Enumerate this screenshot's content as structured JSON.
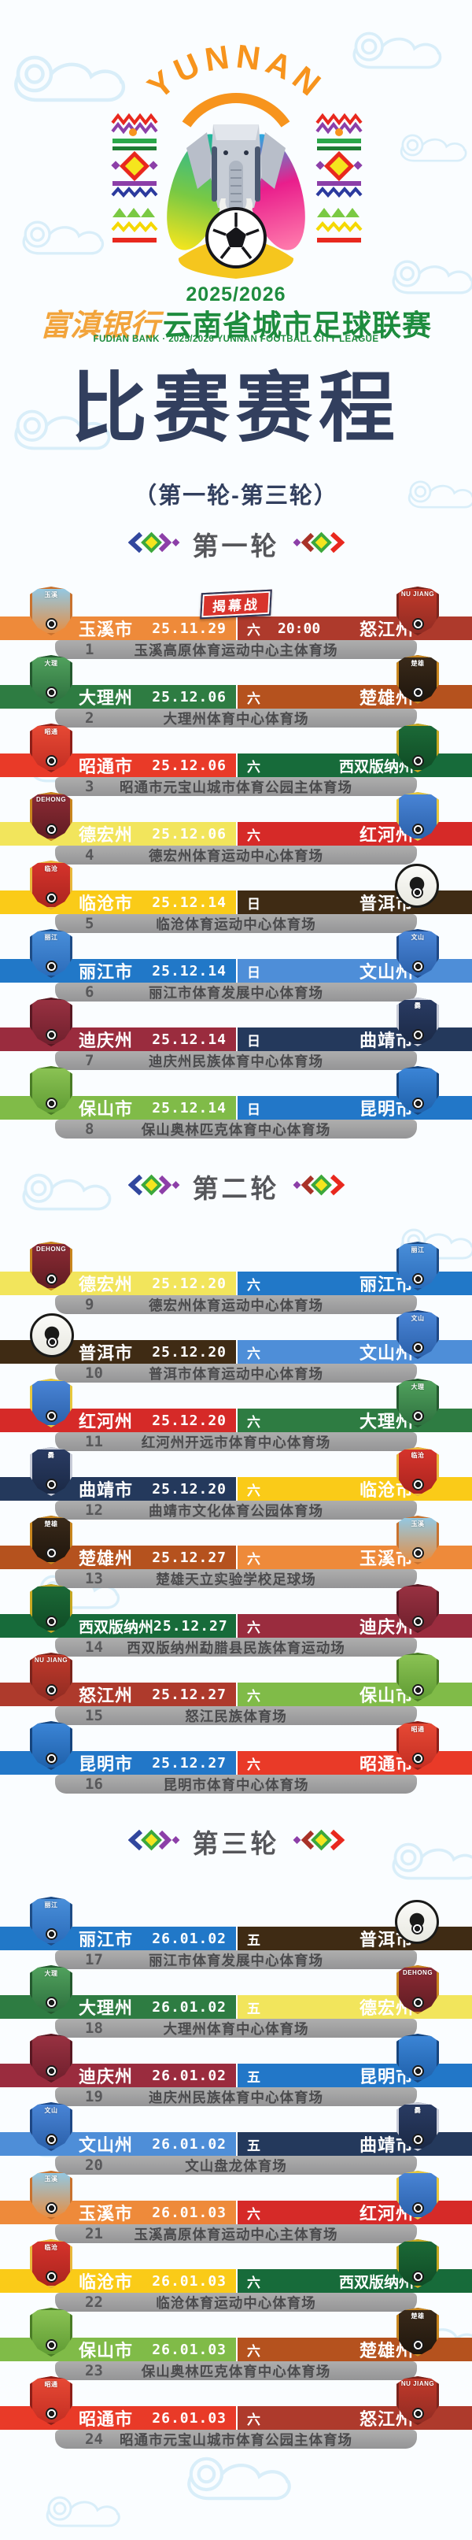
{
  "header": {
    "emblem_text": "YUNNAN",
    "season": "2025/2026",
    "sponsor": "富滇银行",
    "title": "云南省城市足球联赛",
    "subtitle_en": "FUDIAN BANK · 2025/2026 YUNNAN FOOTBALL CITY LEAGUE",
    "schedule_title": "比赛赛程",
    "schedule_range": "（第一轮-第三轮）"
  },
  "teams": {
    "玉溪市": {
      "color": "#EE8A3A",
      "logo": {
        "bg": "#8FCBEA",
        "bg2": "#E98B3C",
        "border": "#C9722E",
        "label": "玉溪",
        "shape": "shield"
      }
    },
    "怒江州": {
      "color": "#AE3A2C",
      "logo": {
        "bg": "#C33A2B",
        "bg2": "#8E2B22",
        "border": "#7A241C",
        "label": "NU JIANG",
        "shape": "shield"
      }
    },
    "大理州": {
      "color": "#2E7C42",
      "logo": {
        "bg": "#52A35E",
        "bg2": "#2C6E3D",
        "border": "#24592F",
        "label": "大理",
        "shape": "shield"
      }
    },
    "楚雄州": {
      "color": "#B5521E",
      "logo": {
        "bg": "#3A2A1A",
        "bg2": "#1E150C",
        "border": "#C8861E",
        "label": "楚雄",
        "shape": "shield"
      }
    },
    "昭通市": {
      "color": "#E93A28",
      "logo": {
        "bg": "#E84A35",
        "bg2": "#C22D22",
        "border": "#8E1F18",
        "label": "昭通",
        "shape": "shield"
      }
    },
    "西双版纳州": {
      "color": "#176B3A",
      "logo": {
        "bg": "#1C6B38",
        "bg2": "#0F4A24",
        "border": "#C8A822",
        "label": "",
        "shape": "shield"
      }
    },
    "德宏州": {
      "color": "#F2E55C",
      "logo": {
        "bg": "#8E2B35",
        "bg2": "#5E1C22",
        "border": "#C8861E",
        "label": "DEHONG",
        "shape": "shield"
      }
    },
    "红河州": {
      "color": "#D62A28",
      "logo": {
        "bg": "#4A86D8",
        "bg2": "#2A5FA8",
        "border": "#E8C83C",
        "label": "",
        "shape": "shield"
      }
    },
    "临沧市": {
      "color": "#FACB18",
      "logo": {
        "bg": "#D8342C",
        "bg2": "#A8241E",
        "border": "#E8B83C",
        "label": "临沧",
        "shape": "shield"
      }
    },
    "普洱市": {
      "color": "#3F2B14",
      "logo": {
        "bg": "#FBFBF8",
        "bg2": "#E8E8E0",
        "border": "#1A1A18",
        "label": "",
        "shape": "circle"
      }
    },
    "丽江市": {
      "color": "#2178C8",
      "logo": {
        "bg": "#4A90DB",
        "bg2": "#2A6AB8",
        "border": "#1E4C86",
        "label": "丽江",
        "shape": "shield"
      }
    },
    "文山州": {
      "color": "#4E8ED8",
      "logo": {
        "bg": "#4A86D8",
        "bg2": "#2A5FA8",
        "border": "#1E4886",
        "label": "文山",
        "shape": "shield"
      }
    },
    "迪庆州": {
      "color": "#9A2C3E",
      "logo": {
        "bg": "#9A3242",
        "bg2": "#6E1F2C",
        "border": "#581822",
        "label": "",
        "shape": "shield"
      }
    },
    "曲靖市": {
      "color": "#24395C",
      "logo": {
        "bg": "#2A3C64",
        "bg2": "#1A2844",
        "border": "#C8CCD8",
        "label": "爨",
        "shape": "shield"
      }
    },
    "保山市": {
      "color": "#80BB48",
      "logo": {
        "bg": "#8CC455",
        "bg2": "#5E9A32",
        "border": "#4A7C26",
        "label": "",
        "shape": "shield"
      }
    },
    "昆明市": {
      "color": "#2277C8",
      "logo": {
        "bg": "#3C86D8",
        "bg2": "#1E5FA8",
        "border": "#16457E",
        "label": "",
        "shape": "shield"
      }
    }
  },
  "rounds": [
    {
      "name": "第一轮",
      "matches": [
        {
          "no": "1",
          "home": "玉溪市",
          "away": "怒江州",
          "date": "25.11.29",
          "day": "六",
          "time": "20:00",
          "badge": "揭幕战",
          "venue": "玉溪高原体育运动中心主体育场"
        },
        {
          "no": "2",
          "home": "大理州",
          "away": "楚雄州",
          "date": "25.12.06",
          "day": "六",
          "venue": "大理州体育中心体育场"
        },
        {
          "no": "3",
          "home": "昭通市",
          "away": "西双版纳州",
          "date": "25.12.06",
          "day": "六",
          "venue": "昭通市元宝山城市体育公园主体育场"
        },
        {
          "no": "4",
          "home": "德宏州",
          "away": "红河州",
          "date": "25.12.06",
          "day": "六",
          "venue": "德宏州体育运动中心体育场"
        },
        {
          "no": "5",
          "home": "临沧市",
          "away": "普洱市",
          "date": "25.12.14",
          "day": "日",
          "venue": "临沧体育运动中心体育场"
        },
        {
          "no": "6",
          "home": "丽江市",
          "away": "文山州",
          "date": "25.12.14",
          "day": "日",
          "venue": "丽江市体育发展中心体育场"
        },
        {
          "no": "7",
          "home": "迪庆州",
          "away": "曲靖市",
          "date": "25.12.14",
          "day": "日",
          "venue": "迪庆州民族体育中心体育场"
        },
        {
          "no": "8",
          "home": "保山市",
          "away": "昆明市",
          "date": "25.12.14",
          "day": "日",
          "venue": "保山奥林匹克体育中心体育场"
        }
      ]
    },
    {
      "name": "第二轮",
      "matches": [
        {
          "no": "9",
          "home": "德宏州",
          "away": "丽江市",
          "date": "25.12.20",
          "day": "六",
          "venue": "德宏州体育运动中心体育场"
        },
        {
          "no": "10",
          "home": "普洱市",
          "away": "文山州",
          "date": "25.12.20",
          "day": "六",
          "venue": "普洱市体育运动中心体育场"
        },
        {
          "no": "11",
          "home": "红河州",
          "away": "大理州",
          "date": "25.12.20",
          "day": "六",
          "venue": "红河州开远市体育中心体育场"
        },
        {
          "no": "12",
          "home": "曲靖市",
          "away": "临沧市",
          "date": "25.12.20",
          "day": "六",
          "venue": "曲靖市文化体育公园体育场"
        },
        {
          "no": "13",
          "home": "楚雄州",
          "away": "玉溪市",
          "date": "25.12.27",
          "day": "六",
          "venue": "楚雄天立实验学校足球场"
        },
        {
          "no": "14",
          "home": "西双版纳州",
          "away": "迪庆州",
          "date": "25.12.27",
          "day": "六",
          "venue": "西双版纳州勐腊县民族体育运动场"
        },
        {
          "no": "15",
          "home": "怒江州",
          "away": "保山市",
          "date": "25.12.27",
          "day": "六",
          "venue": "怒江民族体育场"
        },
        {
          "no": "16",
          "home": "昆明市",
          "away": "昭通市",
          "date": "25.12.27",
          "day": "六",
          "venue": "昆明市体育中心体育场"
        }
      ]
    },
    {
      "name": "第三轮",
      "matches": [
        {
          "no": "17",
          "home": "丽江市",
          "away": "普洱市",
          "date": "26.01.02",
          "day": "五",
          "venue": "丽江市体育发展中心体育场"
        },
        {
          "no": "18",
          "home": "大理州",
          "away": "德宏州",
          "date": "26.01.02",
          "day": "五",
          "venue": "大理州体育中心体育场"
        },
        {
          "no": "19",
          "home": "迪庆州",
          "away": "昆明市",
          "date": "26.01.02",
          "day": "五",
          "venue": "迪庆州民族体育中心体育场"
        },
        {
          "no": "20",
          "home": "文山州",
          "away": "曲靖市",
          "date": "26.01.02",
          "day": "五",
          "venue": "文山盘龙体育场"
        },
        {
          "no": "21",
          "home": "玉溪市",
          "away": "红河州",
          "date": "26.01.03",
          "day": "六",
          "venue": "玉溪高原体育运动中心主体育场"
        },
        {
          "no": "22",
          "home": "临沧市",
          "away": "西双版纳州",
          "date": "26.01.03",
          "day": "六",
          "venue": "临沧体育运动中心体育场"
        },
        {
          "no": "23",
          "home": "保山市",
          "away": "楚雄州",
          "date": "26.01.03",
          "day": "六",
          "venue": "保山奥林匹克体育中心体育场"
        },
        {
          "no": "24",
          "home": "昭通市",
          "away": "怒江州",
          "date": "26.01.03",
          "day": "六",
          "venue": "昭通市元宝山城市体育公园主体育场"
        }
      ]
    }
  ]
}
